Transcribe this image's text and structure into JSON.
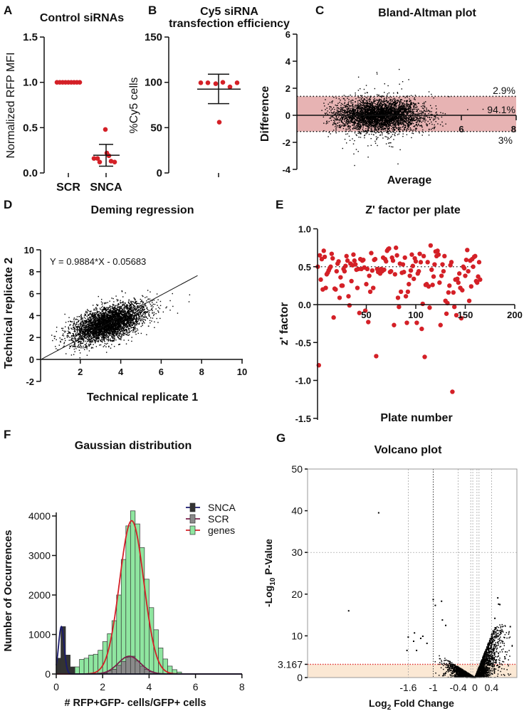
{
  "chart_data": [
    {
      "panel": "A",
      "type": "scatter",
      "title": "Control siRNAs",
      "ylabel": "Normalized RFP MFI",
      "ylim": [
        0,
        1.5
      ],
      "yticks": [
        "0.0",
        "0.5",
        "1.0",
        "1.5"
      ],
      "categories": [
        "SCR",
        "SNCA"
      ],
      "point_color": "#d42027",
      "series": [
        {
          "name": "SCR",
          "values": [
            1,
            1,
            1,
            1,
            1,
            1,
            1,
            1,
            1
          ],
          "mean": 1.0,
          "error_low": 1.0,
          "error_high": 1.0
        },
        {
          "name": "SNCA",
          "values": [
            0.48,
            0.22,
            0.19,
            0.16,
            0.16,
            0.13,
            0.12,
            0.12
          ],
          "mean": 0.195,
          "error_low": 0.075,
          "error_high": 0.315
        }
      ]
    },
    {
      "panel": "B",
      "type": "scatter",
      "title": [
        "Cy5 siRNA",
        "transfection efficiency"
      ],
      "ylabel": "%Cy5 cells",
      "ylim": [
        0,
        150
      ],
      "yticks": [
        "0",
        "50",
        "100",
        "150"
      ],
      "point_color": "#d42027",
      "values": [
        99.5,
        99.5,
        98.5,
        100,
        95,
        99.5,
        56
      ],
      "mean": 92.5,
      "error_low": 76.5,
      "error_high": 109
    },
    {
      "panel": "C",
      "type": "scatter",
      "title": "Bland-Altman plot",
      "xlabel": "Average",
      "ylabel": "Difference",
      "xlim": [
        0,
        8
      ],
      "ylim": [
        -4,
        6
      ],
      "xticks": [
        "6",
        "8"
      ],
      "yticks": [
        "-4",
        "-2",
        "0",
        "2",
        "4",
        "6"
      ],
      "bias": 0,
      "upper_limit": 1.4,
      "lower_limit": -1.2,
      "band_color": "#e7b3b3",
      "annotations": [
        "2.9%",
        "94.1%",
        "3%"
      ],
      "cloud": {
        "n": 4000,
        "average_mean": 3.0,
        "average_sd": 0.75,
        "difference_sd": 0.55
      }
    },
    {
      "panel": "D",
      "type": "scatter",
      "title": "Deming regression",
      "xlabel": "Technical replicate 1",
      "ylabel": "Technical replicate 2",
      "xlim": [
        0,
        10
      ],
      "ylim": [
        -2,
        10
      ],
      "xticks": [
        "2",
        "4",
        "6",
        "8",
        "10"
      ],
      "yticks": [
        "-2",
        "0",
        "2",
        "4",
        "6",
        "8",
        "10"
      ],
      "equation": "Y = 0.9884*X - 0.05683",
      "slope": 0.9884,
      "intercept": -0.05683,
      "fit_x_range": [
        0.1,
        7.8
      ],
      "cloud": {
        "n": 4000,
        "x_mean": 3.4,
        "x_sd": 0.85,
        "y_mean": 3.3,
        "y_sd": 0.75
      }
    },
    {
      "panel": "E",
      "type": "scatter",
      "title": "Z' factor per plate",
      "xlabel": "Plate number",
      "ylabel": "z' factor",
      "xlim": [
        0,
        200
      ],
      "ylim": [
        -1.5,
        1.0
      ],
      "xticks": [
        "50",
        "100",
        "150",
        "200"
      ],
      "yticks": [
        "-1.5",
        "-1.0",
        "-0.5",
        "0.0",
        "0.5",
        "1.0"
      ],
      "threshold": 0.5,
      "point_color": "#d42027",
      "values": [
        0.5,
        -0.8,
        0.65,
        0.33,
        0.6,
        0.2,
        0.71,
        0.63,
        0.22,
        0.4,
        0.42,
        0.45,
        0.48,
        0.5,
        0.67,
        0.61,
        -0.17,
        0.21,
        0.2,
        0.44,
        0.54,
        0.57,
        0.09,
        0.36,
        0.25,
        0.25,
        0.47,
        0.44,
        0.51,
        0.64,
        0.58,
        0.11,
        -0.01,
        0.54,
        0.31,
        0.52,
        0.66,
        0.58,
        0.53,
        0.46,
        0.22,
        0.47,
        -0.11,
        0.6,
        0.47,
        0.58,
        0.59,
        0.49,
        -0.08,
        0.27,
        0.47,
        -0.23,
        0.38,
        0.17,
        0.68,
        0.45,
        0.22,
        0.59,
        0.6,
        -0.68,
        0.47,
        0.43,
        0.45,
        0.41,
        0.47,
        0.44,
        0.62,
        0.46,
        0.6,
        0.57,
        0.71,
        0.73,
        0.74,
        0.43,
        0.44,
        0.62,
        0.58,
        -0.27,
        0.4,
        0.75,
        0.65,
        0.09,
        -0.03,
        0.54,
        0.17,
        0.42,
        0.53,
        0.43,
        0.62,
        0.11,
        -0.24,
        0.17,
        0.27,
        0.38,
        0.45,
        0.66,
        0.51,
        0.34,
        0.61,
        0.57,
        -0.24,
        0.41,
        0.44,
        0.67,
        0.56,
        -0.32,
        0.01,
        0.64,
        -0.69,
        0.26,
        0.27,
        0.56,
        0.24,
        -0.04,
        0.78,
        0.46,
        0.26,
        0.37,
        0.53,
        0.7,
        0.64,
        0.71,
        0.66,
        0.29,
        -0.27,
        0.38,
        0.53,
        0.44,
        0.64,
        0.05,
        -0.12,
        0.02,
        0.16,
        0.25,
        0.52,
        0.56,
        -1.15,
        0.16,
        -0.03,
        0.33,
        -0.14,
        0.34,
        0.29,
        0.41,
        0.22,
        -0.18,
        0.19,
        0.5,
        0.48,
        0.38,
        0.59,
        0.72,
        0.44,
        0.05,
        0.58,
        0.24,
        0.6,
        0.5,
        0.63,
        0.64,
        0.31,
        0.29,
        0.37,
        0.56,
        0.33
      ]
    },
    {
      "panel": "F",
      "type": "bar",
      "title": "Gaussian distribution",
      "xlabel": "# RFP+GFP- cells/GFP+ cells",
      "ylabel": "Number of Occurrences",
      "xlim": [
        0,
        8
      ],
      "ylim": [
        0,
        4500
      ],
      "xticks": [
        "0",
        "2",
        "4",
        "6",
        "8"
      ],
      "yticks": [
        "0",
        "1000",
        "2000",
        "3000",
        "4000"
      ],
      "bin_width": 0.2,
      "legend": [
        "SNCA",
        "SCR",
        "genes"
      ],
      "legend_position": "top-right",
      "series": [
        {
          "name": "genes",
          "bar_color": "#8fe6a0",
          "fit_color": "#d42027",
          "fit": {
            "mean": 3.25,
            "sd": 0.52,
            "peak": 3880
          },
          "bin_starts": [
            0.8,
            1.0,
            1.2,
            1.4,
            1.6,
            1.8,
            2.0,
            2.2,
            2.4,
            2.6,
            2.8,
            3.0,
            3.2,
            3.4,
            3.6,
            3.8,
            4.0,
            4.2,
            4.4,
            4.6,
            4.8,
            5.0,
            5.2
          ],
          "counts": [
            180,
            370,
            400,
            480,
            500,
            600,
            820,
            1020,
            1350,
            2000,
            2900,
            3750,
            4130,
            3800,
            3200,
            2400,
            1680,
            1120,
            660,
            380,
            200,
            110,
            50
          ]
        },
        {
          "name": "SCR",
          "bar_color": "#8a8a8a",
          "fit_color": "#7a1f4a",
          "fit": {
            "mean": 3.15,
            "sd": 0.48,
            "peak": 450
          },
          "bin_starts": [
            2.0,
            2.2,
            2.4,
            2.6,
            2.8,
            3.0,
            3.2,
            3.4,
            3.6,
            3.8,
            4.0
          ],
          "counts": [
            30,
            80,
            120,
            220,
            320,
            420,
            450,
            330,
            200,
            120,
            60
          ]
        },
        {
          "name": "SNCA",
          "bar_color": "#333333",
          "fit_color": "#1a1a6e",
          "fit": {
            "mean": 0.22,
            "sd": 0.12,
            "peak": 1200
          },
          "bin_starts": [
            0.0,
            0.2,
            0.4,
            0.6
          ],
          "counts": [
            400,
            1200,
            480,
            180
          ]
        }
      ]
    },
    {
      "panel": "G",
      "type": "scatter",
      "title": "Volcano plot",
      "xlabel_parts": [
        "Log",
        "2",
        " Fold Change"
      ],
      "ylabel_parts": [
        "-Log",
        "10",
        " P-Value"
      ],
      "xlim": [
        -4.0,
        1.0
      ],
      "ylim": [
        0,
        50
      ],
      "xticks": [
        "-1.6",
        "-1",
        "-0.4",
        "0",
        "0.4"
      ],
      "yticks": [
        "0",
        "3.167",
        "10",
        "20",
        "30",
        "40",
        "50"
      ],
      "significance_threshold": 3.167,
      "threshold_color": "#e03030",
      "band_color": "#fbe8d4",
      "vertical_guides": [
        -1.6,
        -0.4,
        -0.1,
        -0.05,
        0.05,
        0.1,
        0.4
      ],
      "fold_change_cutoff": -1,
      "outliers": [
        [
          -2.31,
          39.5
        ],
        [
          -3.03,
          16.0
        ],
        [
          -1.63,
          6.5
        ],
        [
          -1.6,
          9.7
        ],
        [
          -1.45,
          10.7
        ],
        [
          -1.47,
          8.7
        ],
        [
          -1.4,
          6.5
        ],
        [
          -1.3,
          9.4
        ],
        [
          -1.25,
          9.9
        ],
        [
          -1.15,
          8.2
        ],
        [
          -1.0,
          18.7
        ],
        [
          -0.95,
          17.3
        ],
        [
          -0.8,
          18.3
        ],
        [
          -0.78,
          13.8
        ],
        [
          -0.7,
          12.5
        ],
        [
          0.55,
          19.1
        ],
        [
          0.57,
          17.6
        ],
        [
          0.6,
          17.5
        ],
        [
          0.85,
          12.2
        ],
        [
          0.48,
          14.2
        ]
      ],
      "cloud": {
        "n": 3000,
        "x_sd": 0.3
      }
    }
  ]
}
